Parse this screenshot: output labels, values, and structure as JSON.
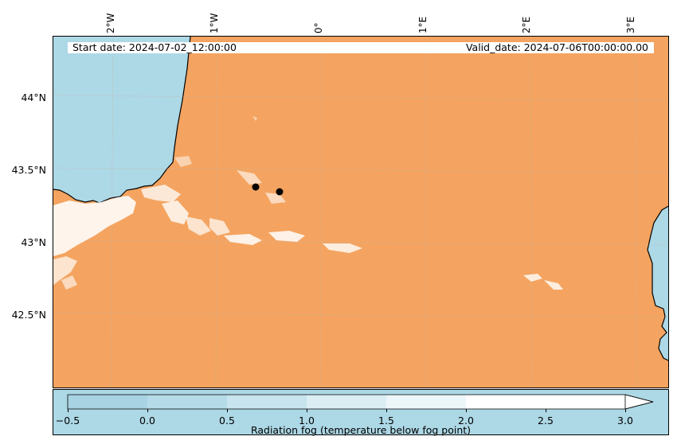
{
  "info": {
    "start_date": "Start date: 2024-07-02_12:00:00",
    "valid_date": "Valid_date: 2024-07-06T00:00:00.00"
  },
  "longitude_ticks": [
    "2°W",
    "1°W",
    "0°",
    "1°E",
    "2°E",
    "3°E"
  ],
  "latitude_ticks": [
    "44°N",
    "43.5°N",
    "43°N",
    "42.5°N"
  ],
  "colors": {
    "sea": "#add8e6",
    "land": "#f4a460",
    "fog": "#ffffff",
    "coastline": "#000000",
    "marker": "#000000"
  },
  "markers": [
    {
      "name": "marker-1"
    },
    {
      "name": "marker-2"
    }
  ],
  "colorbar": {
    "label": "Radiation fog (temperature below fog point)",
    "ticks": [
      "−0.5",
      "0.0",
      "0.5",
      "1.0",
      "1.5",
      "2.0",
      "2.5",
      "3.0"
    ],
    "extend": "max"
  }
}
